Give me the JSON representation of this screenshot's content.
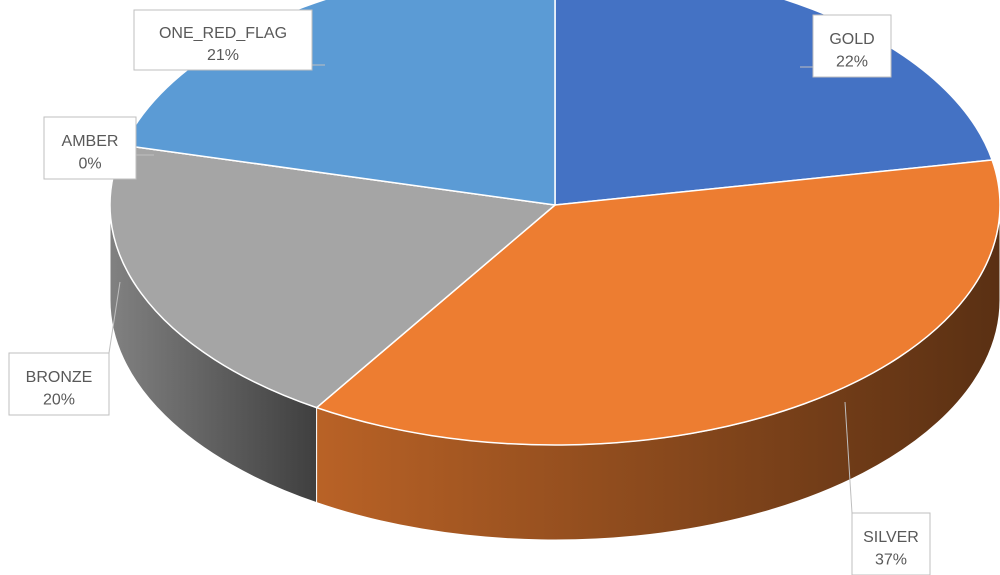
{
  "chart_data": {
    "type": "pie",
    "title": "",
    "style": "3d",
    "categories": [
      "GOLD",
      "SILVER",
      "BRONZE",
      "AMBER",
      "ONE_RED_FLAG"
    ],
    "values": [
      22,
      37,
      20,
      0,
      21
    ],
    "labels": [
      {
        "category": "GOLD",
        "percent": "22%"
      },
      {
        "category": "SILVER",
        "percent": "37%"
      },
      {
        "category": "BRONZE",
        "percent": "20%"
      },
      {
        "category": "AMBER",
        "percent": "0%"
      },
      {
        "category": "ONE_RED_FLAG",
        "percent": "21%"
      }
    ],
    "colors": [
      "#4472C4",
      "#ED7D31",
      "#A5A5A5",
      "#FFC000",
      "#5B9BD5"
    ],
    "legend": "none"
  }
}
